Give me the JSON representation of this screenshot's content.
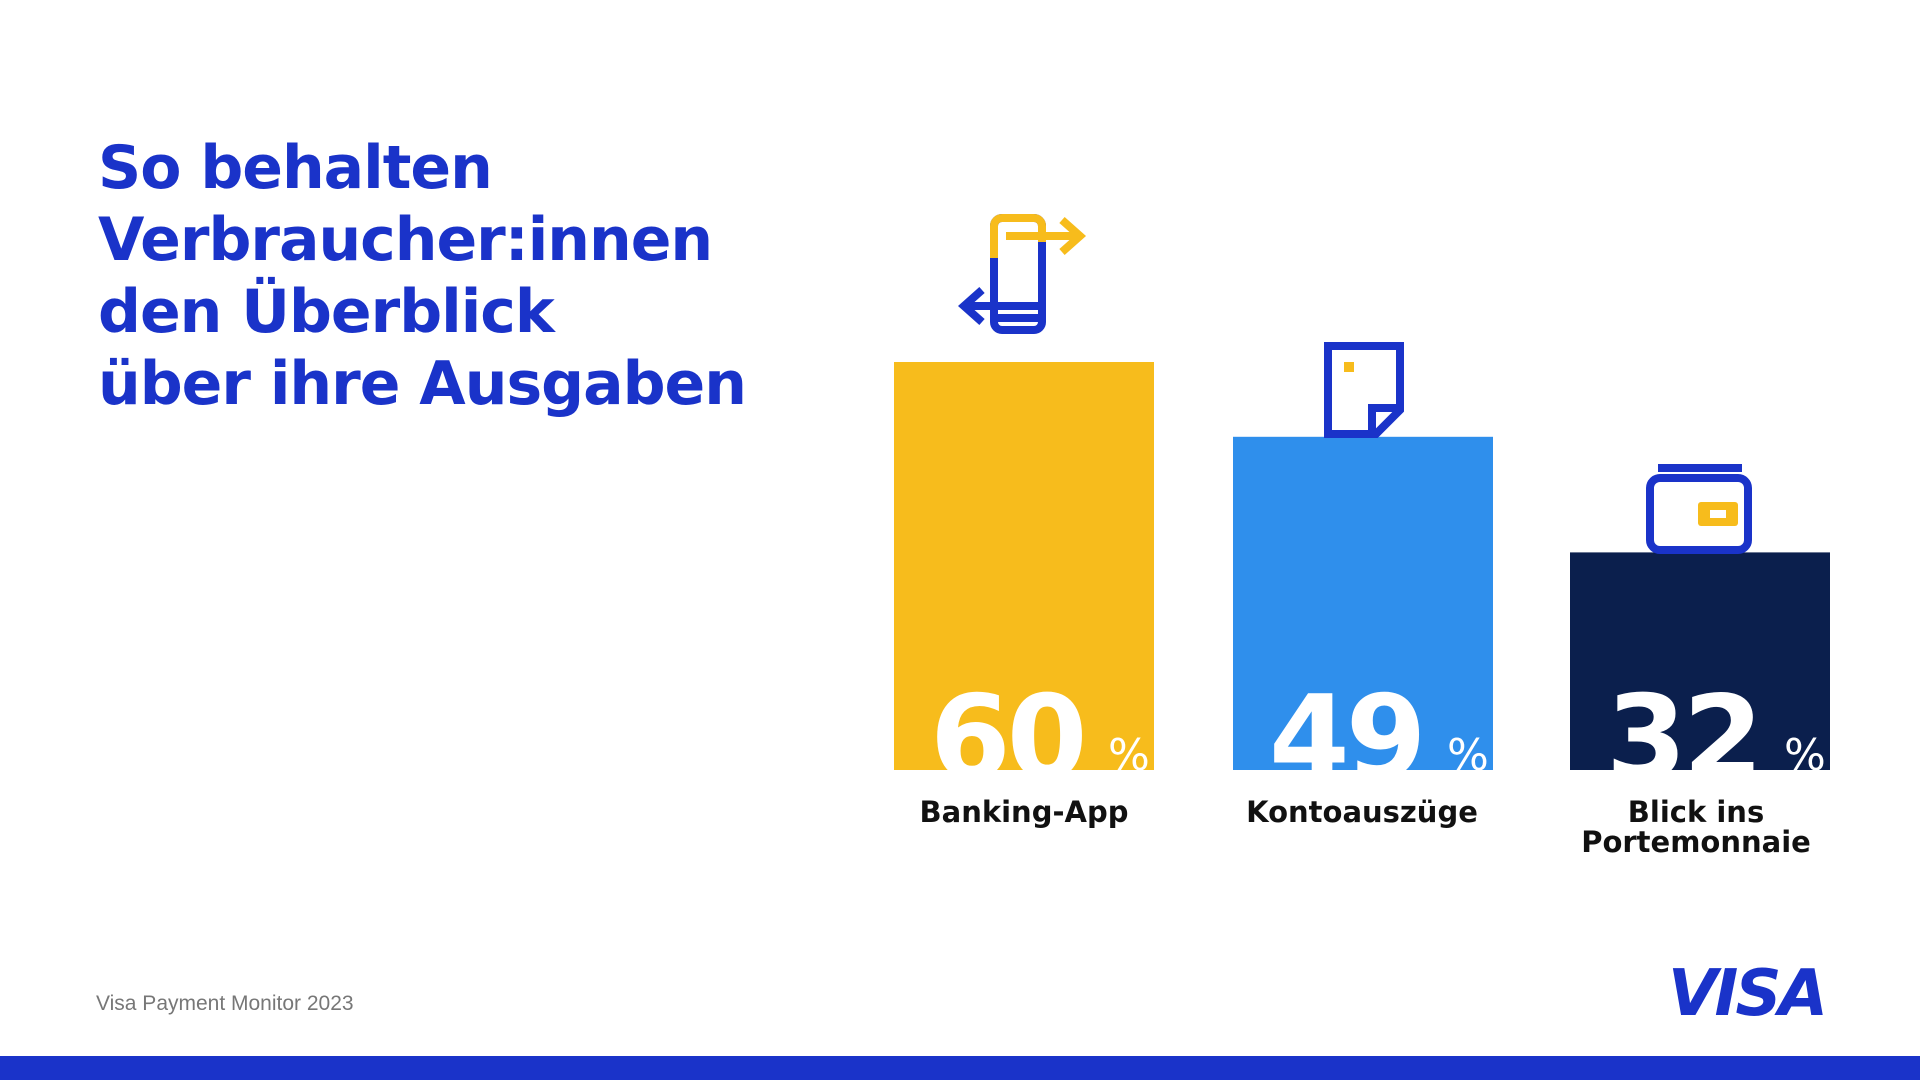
{
  "title": {
    "lines": [
      "So behalten",
      "Verbraucher:innen",
      "den Überblick",
      "über ihre Ausgaben"
    ]
  },
  "chart_data": {
    "type": "bar",
    "categories": [
      "Banking-App",
      "Kontoauszüge",
      "Blick ins Portemonnaie"
    ],
    "category_label_lines": [
      [
        "Banking-App"
      ],
      [
        "Kontoauszüge"
      ],
      [
        "Blick ins",
        "Portemonnaie"
      ]
    ],
    "values": [
      60,
      49,
      32
    ],
    "value_labels": [
      "60",
      "49",
      "32"
    ],
    "unit": "%",
    "bar_colors": [
      "#f7bc1c",
      "#2f8fec",
      "#0b1f4d"
    ],
    "icons": [
      "phone-transfer-icon",
      "document-icon",
      "wallet-icon"
    ],
    "ylim": [
      0,
      60
    ],
    "grid": false,
    "legend": "none"
  },
  "footer": {
    "source": "Visa Payment Monitor 2023",
    "logo_text": "VISA"
  },
  "colors": {
    "brand_blue": "#1a33c9",
    "yellow": "#f7bc1c",
    "sky_blue": "#2f8fec",
    "navy": "#0b1f4d"
  }
}
